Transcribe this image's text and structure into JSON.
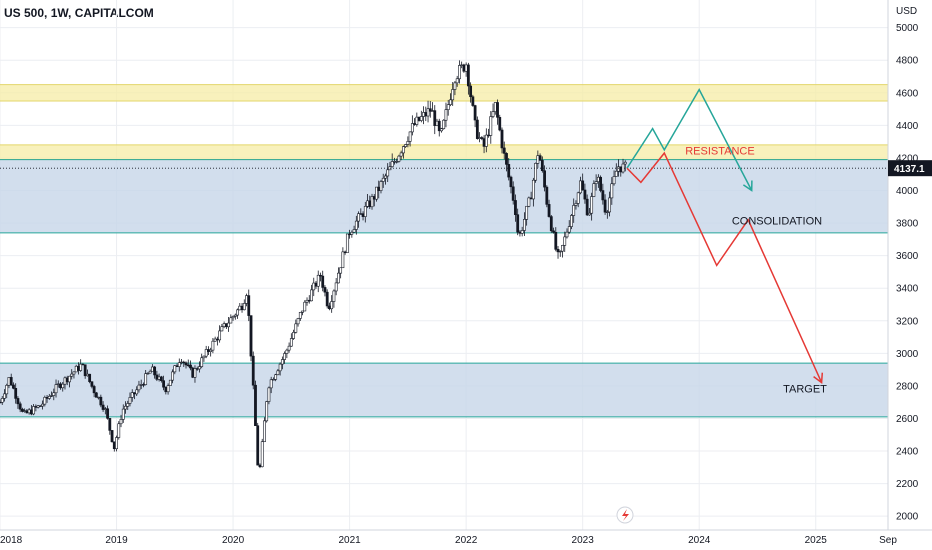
{
  "header": {
    "title": "US 500, 1W, CAPITALCOM"
  },
  "axis": {
    "currency": "USD"
  },
  "price": {
    "current": "4137.1",
    "current_value": 4137.1
  },
  "colors": {
    "bull": "#131722",
    "bear": "#131722",
    "zone_fill": "#c7d6e8",
    "zone_line": "#26a69a",
    "yellow_zone": "#f5eca5",
    "green_path": "#26a69a",
    "red_path": "#e53935",
    "price_label": "#131722",
    "grid": "#eceef2"
  },
  "icons": {
    "logo": "lightning-logo-icon"
  },
  "chart_data": {
    "type": "candlestick",
    "title": "US 500, 1W, CAPITALCOM",
    "ylabel": "USD",
    "ylim": [
      1915,
      5170
    ],
    "xlim": [
      2018.0,
      2025.62
    ],
    "y_ticks": [
      2000,
      2200,
      2400,
      2600,
      2800,
      3000,
      3200,
      3400,
      3600,
      3800,
      4000,
      4200,
      4400,
      4600,
      4800,
      5000
    ],
    "x_ticks": [
      {
        "label": "2018",
        "x": 2018.0
      },
      {
        "label": "2019",
        "x": 2019.0
      },
      {
        "label": "2020",
        "x": 2020.0
      },
      {
        "label": "2021",
        "x": 2021.0
      },
      {
        "label": "2022",
        "x": 2022.0
      },
      {
        "label": "2023",
        "x": 2023.0
      },
      {
        "label": "2024",
        "x": 2024.0
      },
      {
        "label": "2025",
        "x": 2025.0
      },
      {
        "label": "Sep",
        "x": 2025.62
      }
    ],
    "price_path": [
      [
        2018.0,
        2700
      ],
      [
        2018.08,
        2850
      ],
      [
        2018.2,
        2620
      ],
      [
        2018.35,
        2680
      ],
      [
        2018.5,
        2800
      ],
      [
        2018.7,
        2930
      ],
      [
        2018.8,
        2780
      ],
      [
        2018.9,
        2660
      ],
      [
        2018.98,
        2420
      ],
      [
        2019.05,
        2650
      ],
      [
        2019.3,
        2900
      ],
      [
        2019.42,
        2780
      ],
      [
        2019.55,
        2980
      ],
      [
        2019.65,
        2870
      ],
      [
        2019.9,
        3140
      ],
      [
        2020.08,
        3300
      ],
      [
        2020.12,
        3390
      ],
      [
        2020.18,
        2700
      ],
      [
        2020.22,
        2220
      ],
      [
        2020.3,
        2800
      ],
      [
        2020.45,
        3000
      ],
      [
        2020.6,
        3280
      ],
      [
        2020.75,
        3480
      ],
      [
        2020.82,
        3280
      ],
      [
        2021.0,
        3750
      ],
      [
        2021.2,
        3950
      ],
      [
        2021.4,
        4200
      ],
      [
        2021.55,
        4400
      ],
      [
        2021.7,
        4500
      ],
      [
        2021.78,
        4320
      ],
      [
        2021.9,
        4700
      ],
      [
        2022.0,
        4780
      ],
      [
        2022.08,
        4380
      ],
      [
        2022.15,
        4260
      ],
      [
        2022.25,
        4520
      ],
      [
        2022.33,
        4200
      ],
      [
        2022.42,
        3900
      ],
      [
        2022.45,
        3700
      ],
      [
        2022.55,
        3950
      ],
      [
        2022.62,
        4250
      ],
      [
        2022.7,
        3900
      ],
      [
        2022.78,
        3600
      ],
      [
        2022.8,
        3580
      ],
      [
        2022.92,
        3900
      ],
      [
        2022.98,
        4050
      ],
      [
        2023.05,
        3850
      ],
      [
        2023.12,
        4100
      ],
      [
        2023.2,
        3870
      ],
      [
        2023.3,
        4150
      ],
      [
        2023.38,
        4137
      ]
    ],
    "series": [
      {
        "name": "",
        "points": [
          [
            2023.38,
            4137
          ],
          [
            2023.6,
            4380
          ],
          [
            2023.7,
            4250
          ],
          [
            2024.0,
            4620
          ],
          [
            2024.45,
            4000
          ]
        ]
      },
      {
        "name": "",
        "points": [
          [
            2023.38,
            4137
          ],
          [
            2023.5,
            4050
          ],
          [
            2023.7,
            4230
          ],
          [
            2024.15,
            3540
          ],
          [
            2024.42,
            3820
          ],
          [
            2025.05,
            2820
          ]
        ]
      }
    ],
    "zones": [
      {
        "from": 4550,
        "to": 4650,
        "kind": "resistance"
      },
      {
        "from": 4190,
        "to": 4280,
        "kind": "resistance"
      },
      {
        "from": 3740,
        "to": 4190,
        "kind": "consolidation"
      },
      {
        "from": 2610,
        "to": 2940,
        "kind": "target"
      }
    ],
    "annotations": [
      {
        "text": "RESISTANCE",
        "x": 2023.88,
        "y": 4220,
        "color": "#e53935"
      },
      {
        "text": "CONSOLIDATION",
        "x": 2024.28,
        "y": 3790,
        "color": "#131722"
      },
      {
        "text": "TARGET",
        "x": 2024.72,
        "y": 2760,
        "color": "#131722"
      }
    ],
    "grid": true,
    "legend": "none"
  }
}
